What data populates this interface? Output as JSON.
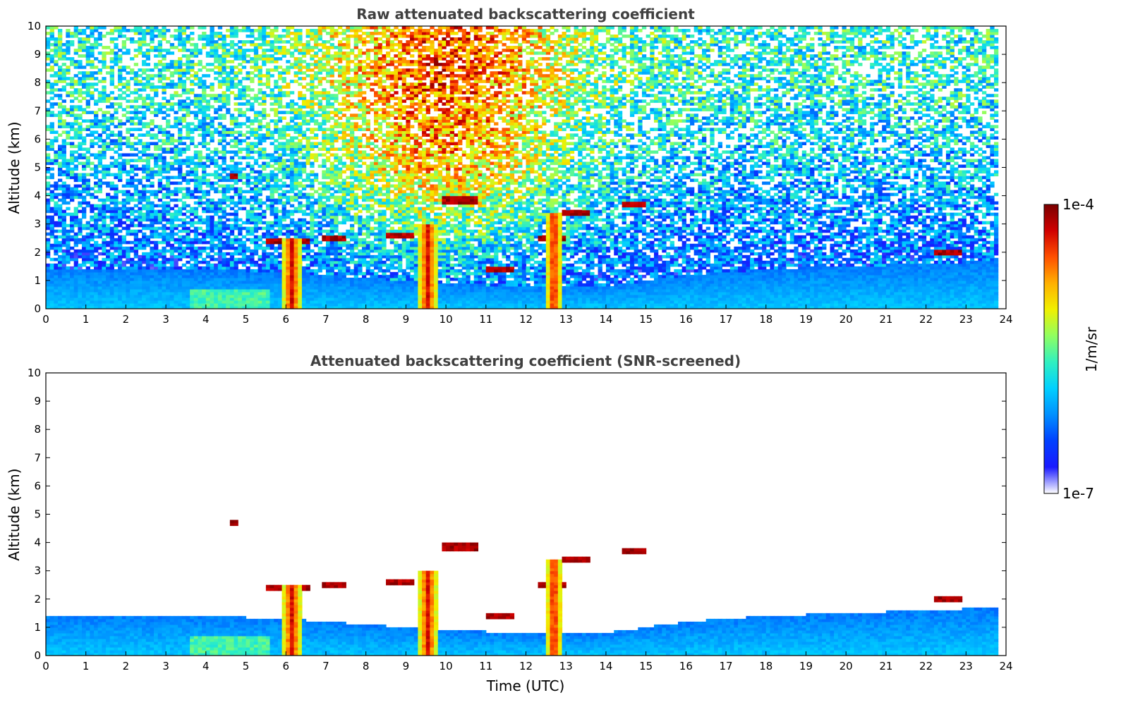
{
  "figure": {
    "colorbar": {
      "max_label": "1e-4",
      "min_label": "1e-7",
      "unit_label": "1/m/sr",
      "scale": "log",
      "vmin": 1e-07,
      "vmax": 0.0001,
      "colormap": [
        "#ffffff",
        "#1a1aff",
        "#0040ff",
        "#0090ff",
        "#00d0ff",
        "#30f0c0",
        "#90ff60",
        "#f0f000",
        "#ffb000",
        "#ff5000",
        "#d00000",
        "#7a0000"
      ]
    }
  },
  "chart_data": [
    {
      "type": "heatmap",
      "title": "Raw attenuated backscattering coefficient",
      "xlabel": "",
      "ylabel": "Altitude (km)",
      "xlim": [
        0,
        24
      ],
      "ylim": [
        0,
        10
      ],
      "x_ticks": [
        "0",
        "1",
        "2",
        "3",
        "4",
        "5",
        "6",
        "7",
        "8",
        "9",
        "10",
        "11",
        "12",
        "13",
        "14",
        "15",
        "16",
        "17",
        "18",
        "19",
        "20",
        "21",
        "22",
        "23",
        "24"
      ],
      "y_ticks": [
        "0",
        "1",
        "2",
        "3",
        "4",
        "5",
        "6",
        "7",
        "8",
        "9",
        "10"
      ],
      "data_extent_hours": [
        0,
        23.8
      ],
      "features": {
        "boundary_layer": [
          [
            0,
            1.4
          ],
          [
            2,
            1.45
          ],
          [
            4,
            1.4
          ],
          [
            6,
            1.3
          ],
          [
            8,
            1.1
          ],
          [
            10,
            0.9
          ],
          [
            12,
            0.8
          ],
          [
            14,
            0.8
          ],
          [
            16,
            1.2
          ],
          [
            18,
            1.4
          ],
          [
            20,
            1.5
          ],
          [
            22,
            1.6
          ],
          [
            23.8,
            1.7
          ]
        ],
        "precip_columns": [
          {
            "t": [
              5.9,
              6.4
            ],
            "top": 2.5
          },
          {
            "t": [
              9.3,
              9.8
            ],
            "top": 3.0
          },
          {
            "t": [
              12.5,
              12.9
            ],
            "top": 3.4
          }
        ],
        "cloud_layers": [
          {
            "t": [
              4.65,
              4.85
            ],
            "alt": 4.7
          },
          {
            "t": [
              5.5,
              6.6
            ],
            "alt": 2.4
          },
          {
            "t": [
              6.95,
              7.5
            ],
            "alt": 2.5
          },
          {
            "t": [
              8.5,
              9.2
            ],
            "alt": 2.6
          },
          {
            "t": [
              9.9,
              10.8
            ],
            "alt": 3.85
          },
          {
            "t": [
              11.0,
              11.7
            ],
            "alt": 1.4
          },
          {
            "t": [
              12.3,
              13.0
            ],
            "alt": 2.5
          },
          {
            "t": [
              12.9,
              13.6
            ],
            "alt": 3.4
          },
          {
            "t": [
              14.4,
              15.0
            ],
            "alt": 3.7
          },
          {
            "t": [
              22.2,
              22.9
            ],
            "alt": 2.0
          }
        ]
      }
    },
    {
      "type": "heatmap",
      "title": "Attenuated backscattering coefficient (SNR-screened)",
      "xlabel": "Time (UTC)",
      "ylabel": "Altitude (km)",
      "xlim": [
        0,
        24
      ],
      "ylim": [
        0,
        10
      ],
      "x_ticks": [
        "0",
        "1",
        "2",
        "3",
        "4",
        "5",
        "6",
        "7",
        "8",
        "9",
        "10",
        "11",
        "12",
        "13",
        "14",
        "15",
        "16",
        "17",
        "18",
        "19",
        "20",
        "21",
        "22",
        "23",
        "24"
      ],
      "y_ticks": [
        "0",
        "1",
        "2",
        "3",
        "4",
        "5",
        "6",
        "7",
        "8",
        "9",
        "10"
      ],
      "data_extent_hours": [
        0,
        23.8
      ]
    }
  ]
}
